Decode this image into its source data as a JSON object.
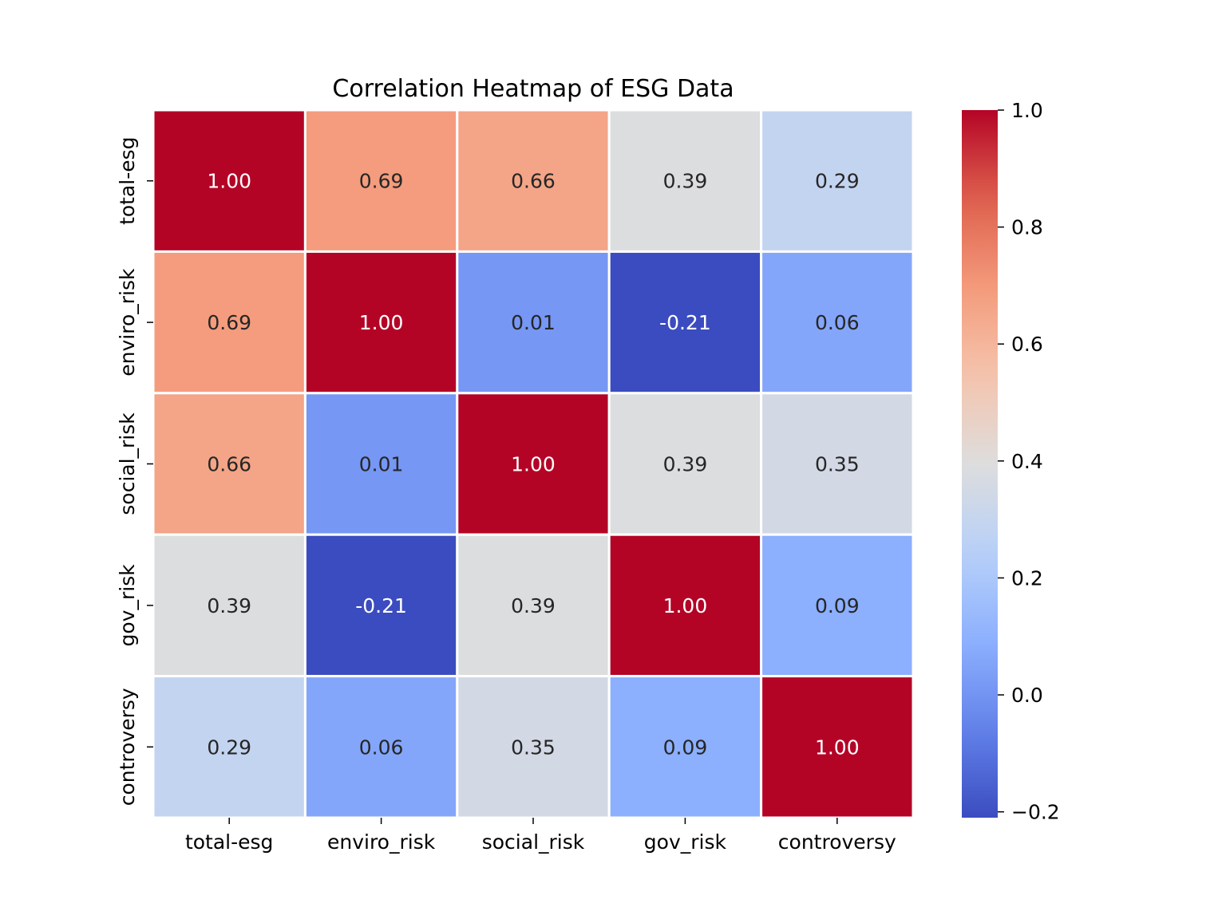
{
  "chart_data": {
    "type": "heatmap",
    "title": "Correlation Heatmap of ESG Data",
    "xlabel": "",
    "ylabel": "",
    "x_categories": [
      "total-esg",
      "enviro_risk",
      "social_risk",
      "gov_risk",
      "controversy"
    ],
    "y_categories": [
      "total-esg",
      "enviro_risk",
      "social_risk",
      "gov_risk",
      "controversy"
    ],
    "values": [
      [
        1.0,
        0.69,
        0.66,
        0.39,
        0.29
      ],
      [
        0.69,
        1.0,
        0.01,
        -0.21,
        0.06
      ],
      [
        0.66,
        0.01,
        1.0,
        0.39,
        0.35
      ],
      [
        0.39,
        -0.21,
        0.39,
        1.0,
        0.09
      ],
      [
        0.29,
        0.06,
        0.35,
        0.09,
        1.0
      ]
    ],
    "annotation_format": "2 decimals",
    "colormap": "coolwarm",
    "colorbar": {
      "range": [
        -0.21,
        1.0
      ],
      "ticks": [
        1.0,
        0.8,
        0.6,
        0.4,
        0.2,
        0.0,
        -0.2
      ],
      "tick_labels": [
        "1.0",
        "0.8",
        "0.6",
        "0.4",
        "0.2",
        "0.0",
        "−0.2"
      ],
      "placement": "right"
    },
    "cell_separator_color": "#ffffff",
    "text_colors": {
      "dark": "#262626",
      "light": "#ffffff"
    }
  }
}
